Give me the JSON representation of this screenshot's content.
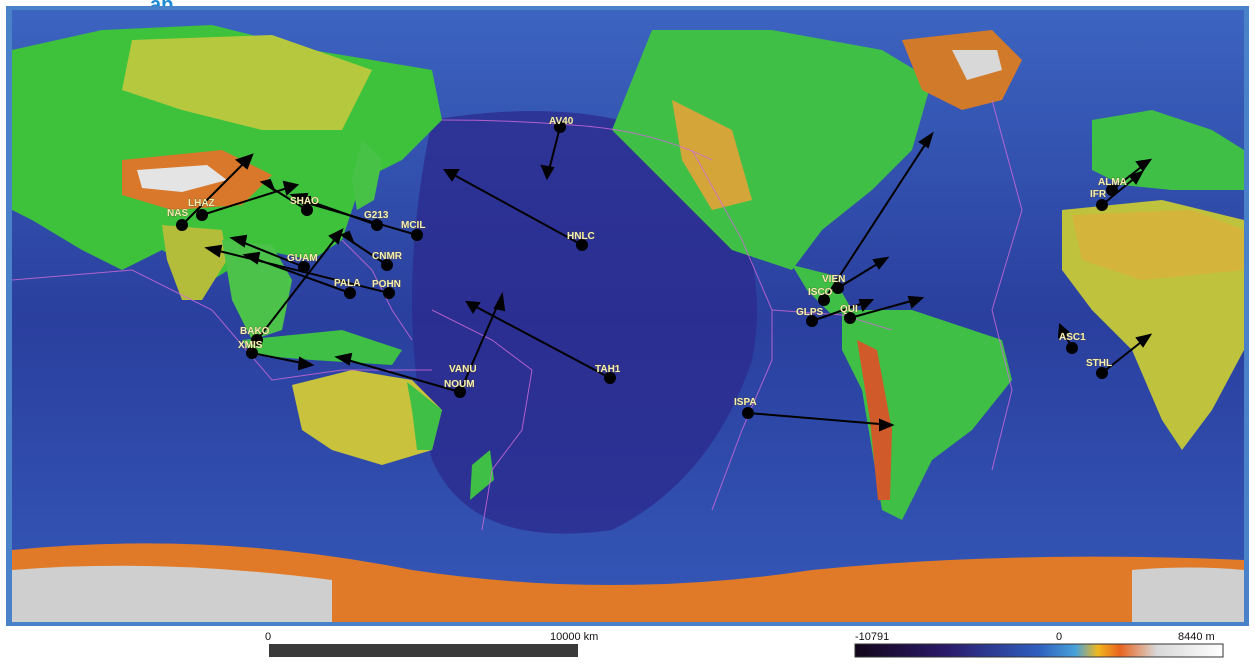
{
  "title": "ap, ...",
  "scale_bar": {
    "start": "0",
    "end": "10000 km"
  },
  "elevation_legend": {
    "min": "-10791",
    "mid": "0",
    "max": "8440 m"
  },
  "stations": [
    {
      "name": "NAS"
    },
    {
      "name": "LHAZ"
    },
    {
      "name": "SHAO"
    },
    {
      "name": "G213"
    },
    {
      "name": "MCIL"
    },
    {
      "name": "AV40"
    },
    {
      "name": "HNLC"
    },
    {
      "name": "GUAM"
    },
    {
      "name": "CNMR"
    },
    {
      "name": "PALA"
    },
    {
      "name": "POHN"
    },
    {
      "name": "BAKO"
    },
    {
      "name": "XMIS"
    },
    {
      "name": "VANU"
    },
    {
      "name": "NOUM"
    },
    {
      "name": "TAH1"
    },
    {
      "name": "VIEN"
    },
    {
      "name": "ISCO"
    },
    {
      "name": "GLPS"
    },
    {
      "name": "QUI"
    },
    {
      "name": "ISPA"
    },
    {
      "name": "ALMA"
    },
    {
      "name": "IFR"
    },
    {
      "name": "ASC1"
    },
    {
      "name": "STHL"
    }
  ]
}
